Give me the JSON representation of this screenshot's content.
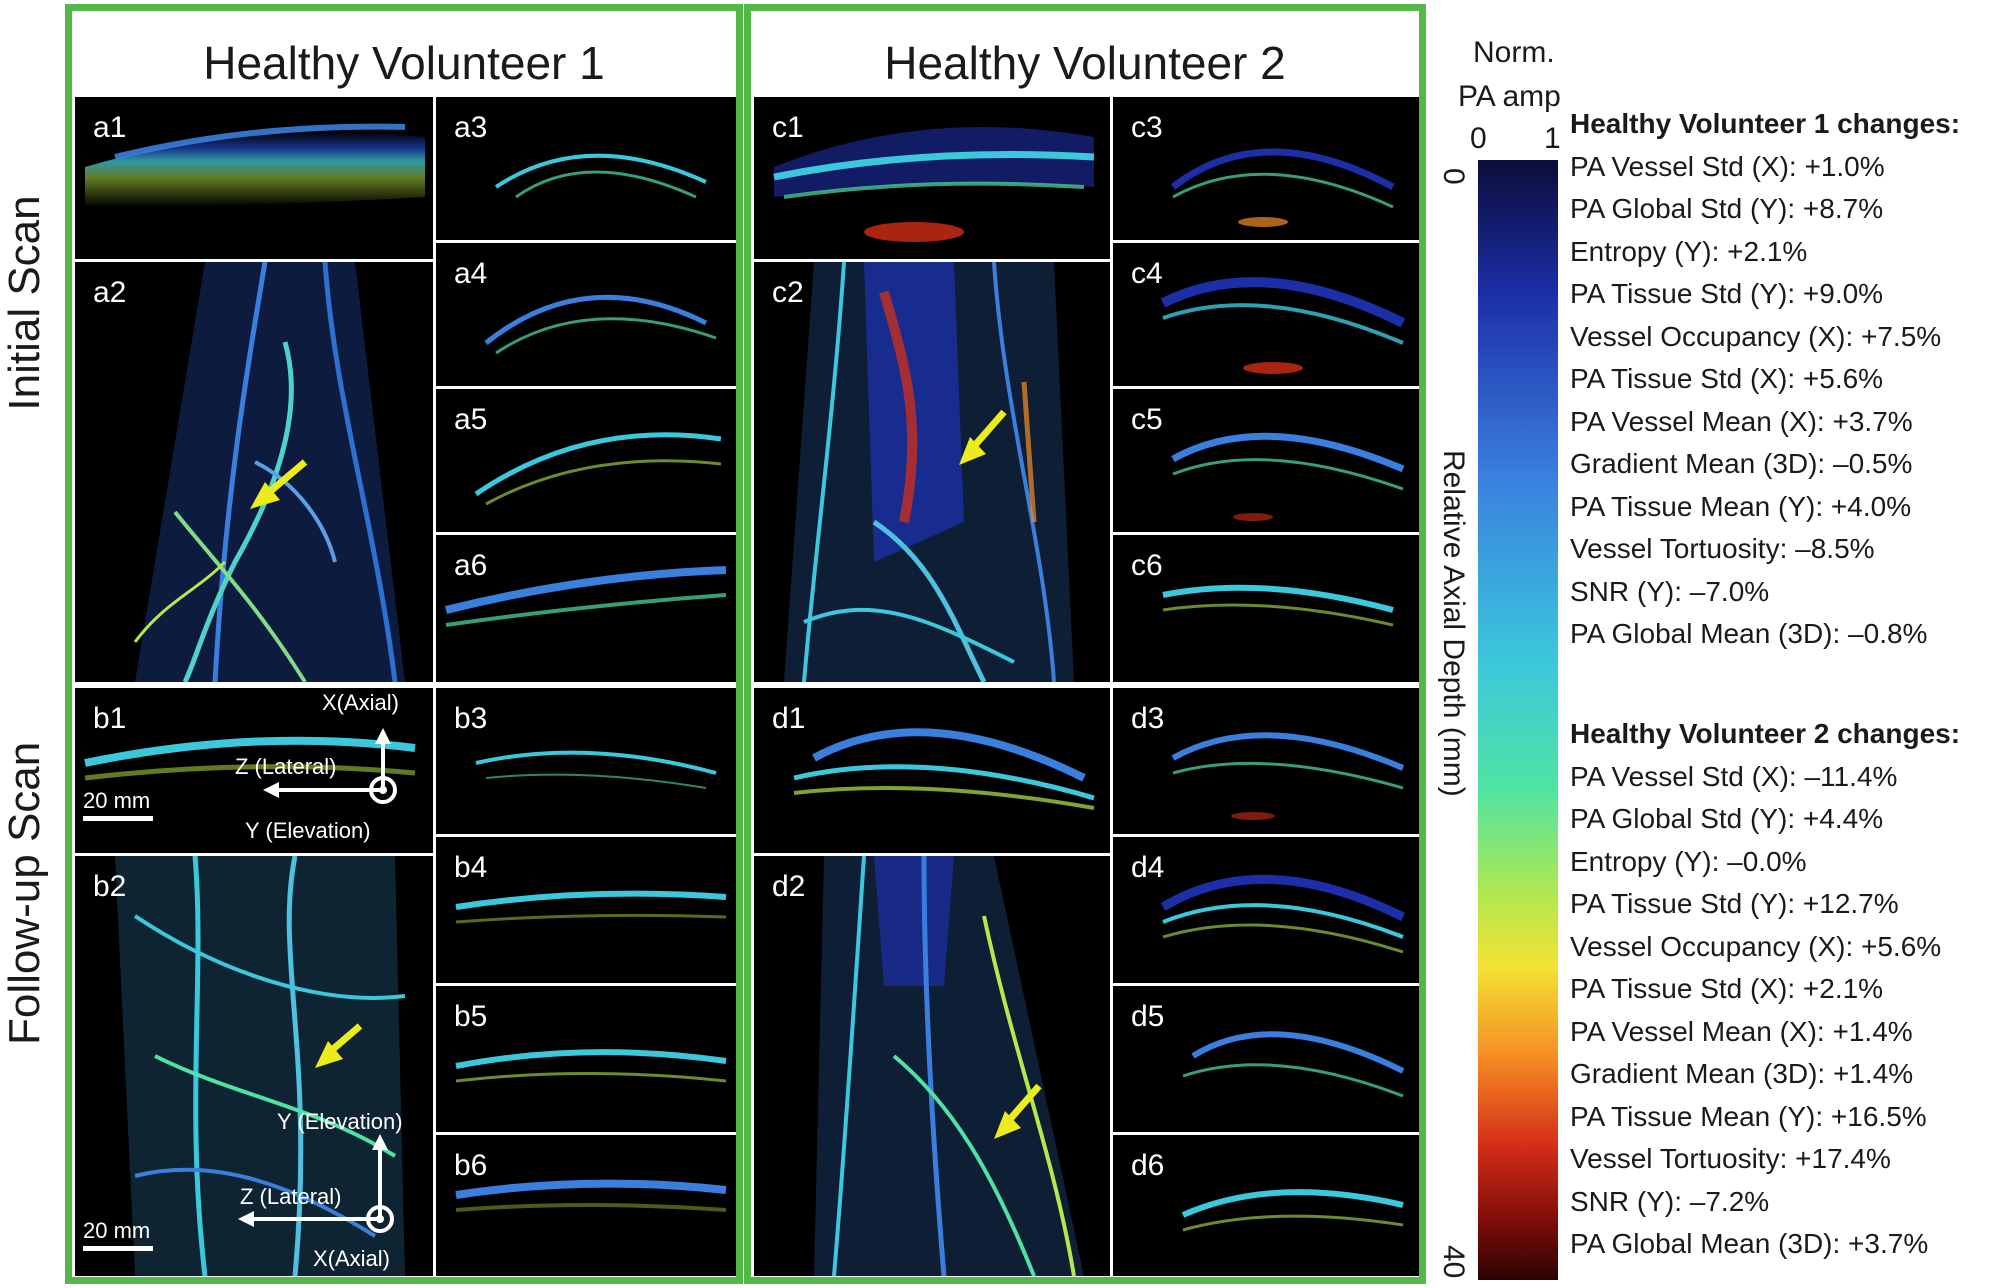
{
  "rows": {
    "initial": "Initial Scan",
    "followup": "Follow-up Scan"
  },
  "volunteers": [
    {
      "title": "Healthy Volunteer 1"
    },
    {
      "title": "Healthy Volunteer 2"
    }
  ],
  "panels": {
    "a1": "a1",
    "a2": "a2",
    "a3": "a3",
    "a4": "a4",
    "a5": "a5",
    "a6": "a6",
    "b1": "b1",
    "b2": "b2",
    "b3": "b3",
    "b4": "b4",
    "b5": "b5",
    "b6": "b6",
    "c1": "c1",
    "c2": "c2",
    "c3": "c3",
    "c4": "c4",
    "c5": "c5",
    "c6": "c6",
    "d1": "d1",
    "d2": "d2",
    "d3": "d3",
    "d4": "d4",
    "d5": "d5",
    "d6": "d6"
  },
  "axes_b1": {
    "x": "X(Axial)",
    "z": "Z (Lateral)",
    "y": "Y (Elevation)",
    "scale": "20 mm"
  },
  "axes_b2": {
    "y": "Y (Elevation)",
    "z": "Z (Lateral)",
    "x": "X(Axial)",
    "scale": "20 mm"
  },
  "colorbar": {
    "title_line1": "Norm.",
    "title_line2": "PA amp",
    "tick_min": "0",
    "tick_max": "1",
    "depth_top": "0",
    "depth_bottom": "40",
    "axis_label": "Relative Axial Depth (mm)",
    "colors": {
      "deep_blue": "#1c2fa8",
      "cyan": "#3cc8dc",
      "yellow": "#f3e233",
      "red": "#d52d17"
    }
  },
  "stats": {
    "v1": {
      "title": "Healthy Volunteer 1 changes:",
      "items": [
        "PA Vessel Std (X): +1.0%",
        "PA Global Std (Y): +8.7%",
        "Entropy (Y): +2.1%",
        "PA Tissue Std (Y): +9.0%",
        "Vessel Occupancy (X): +7.5%",
        "PA Tissue Std (X): +5.6%",
        "PA Vessel Mean (X): +3.7%",
        "Gradient Mean (3D): –0.5%",
        "PA Tissue Mean (Y): +4.0%",
        "Vessel Tortuosity: –8.5%",
        "SNR (Y): –7.0%",
        "PA Global Mean (3D): –0.8%"
      ]
    },
    "v2": {
      "title": "Healthy Volunteer 2 changes:",
      "items": [
        "PA Vessel Std (X): –11.4%",
        "PA Global Std (Y): +4.4%",
        "Entropy (Y): –0.0%",
        "PA Tissue Std (Y): +12.7%",
        "Vessel Occupancy (X): +5.6%",
        "PA Tissue Std (X): +2.1%",
        "PA Vessel Mean (X): +1.4%",
        "Gradient Mean (3D): +1.4%",
        "PA Tissue Mean (Y): +16.5%",
        "Vessel Tortuosity: +17.4%",
        "SNR (Y): –7.2%",
        "PA Global Mean (3D): +3.7%"
      ]
    }
  }
}
